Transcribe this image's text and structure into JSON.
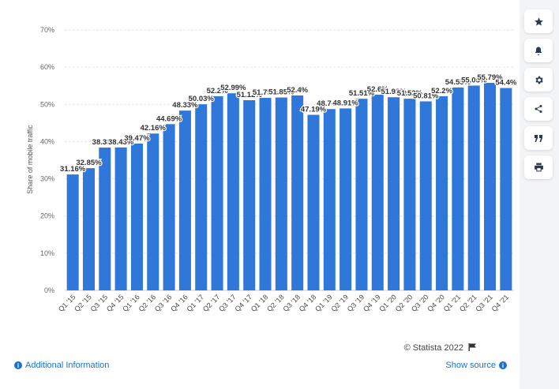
{
  "chart_data": {
    "type": "bar",
    "ylabel": "Share of mobile traffic",
    "xlabel": "",
    "ylim": [
      0,
      70
    ],
    "y_ticks": [
      "0%",
      "10%",
      "20%",
      "30%",
      "40%",
      "50%",
      "60%",
      "70%"
    ],
    "grid": true,
    "bar_color": "#2f77d9",
    "categories": [
      "Q1 '15",
      "Q2 '15",
      "Q3 '15",
      "Q4 '15",
      "Q1 '16",
      "Q2 '16",
      "Q3 '16",
      "Q4 '16",
      "Q1 '17",
      "Q2 '17",
      "Q3 '17",
      "Q4 '17",
      "Q1 '18",
      "Q2 '18",
      "Q3 '18",
      "Q4 '18",
      "Q1 '19",
      "Q2 '19",
      "Q3 '19",
      "Q4 '19",
      "Q1 '20",
      "Q2 '20",
      "Q3 '20",
      "Q4 '20",
      "Q1 '21",
      "Q2 '21",
      "Q3 '21",
      "Q4 '21"
    ],
    "values": [
      31.16,
      32.85,
      38.38,
      38.43,
      39.47,
      42.16,
      44.69,
      48.33,
      50.03,
      52.2,
      52.99,
      51.12,
      51.75,
      51.85,
      52.4,
      47.19,
      48.74,
      48.91,
      51.51,
      52.6,
      51.92,
      51.52,
      50.81,
      52.2,
      54.55,
      55.05,
      55.79,
      54.4
    ],
    "labels": [
      "31.16%",
      "32.85%",
      "38.38%",
      "38.43%",
      "39.47%",
      "42.16%",
      "44.69%",
      "48.33%",
      "50.03%",
      "52.2%",
      "52.99%",
      "51.12%",
      "51.75%",
      "51.85%",
      "52.4%",
      "47.19%",
      "48.74%",
      "48.91%",
      "51.51%",
      "52.6%",
      "51.92%",
      "51.52%",
      "50.81%",
      "52.2%",
      "54.55%",
      "55.05%",
      "55.79%",
      "54.4%"
    ]
  },
  "footer": {
    "credit": "© Statista 2022",
    "additional_info": "Additional Information",
    "show_source": "Show source"
  },
  "sidebar": {
    "icons": [
      "star-icon",
      "bell-icon",
      "gear-icon",
      "share-icon",
      "quote-icon",
      "print-icon"
    ]
  }
}
